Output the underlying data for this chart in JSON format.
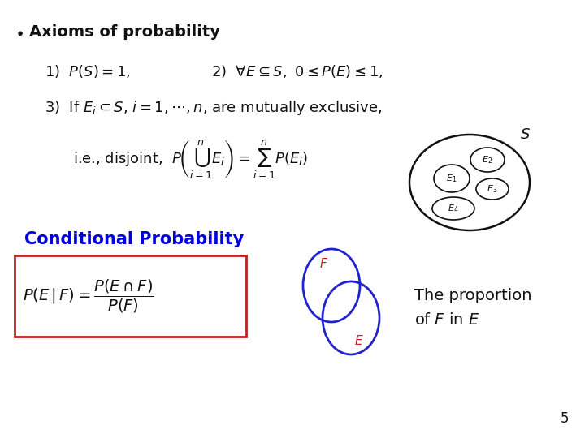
{
  "background_color": "#ffffff",
  "title_bullet": "Axioms of probability",
  "page_number": "5",
  "blue_color": "#0000dd",
  "red_color": "#cc2222",
  "black_color": "#111111",
  "venn_blue": "#2222cc",
  "box_red": "#bb2222",
  "cond_prob_title": "Conditional Probability",
  "proportion_text1": "The proportion",
  "proportion_text2": "of $F$ in $E$"
}
